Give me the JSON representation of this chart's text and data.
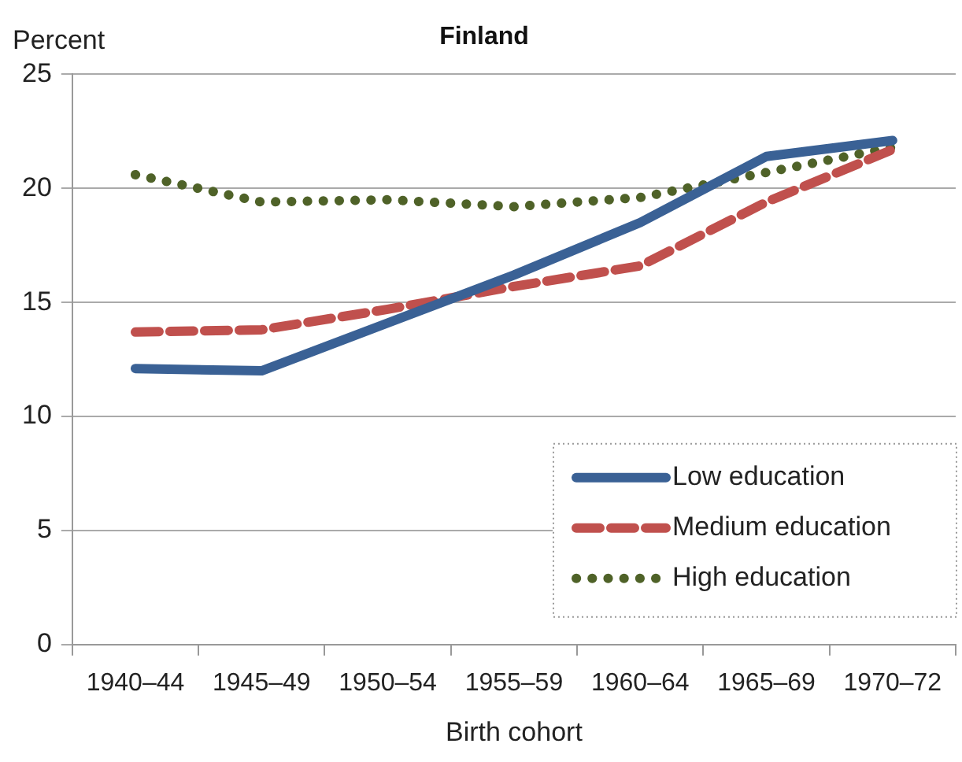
{
  "chart_data": {
    "type": "line",
    "title": "Finland",
    "ylabel": "Percent",
    "xlabel": "Birth cohort",
    "categories": [
      "1940–44",
      "1945–49",
      "1950–54",
      "1955–59",
      "1960–64",
      "1965–69",
      "1970–72"
    ],
    "series": [
      {
        "name": "Low education",
        "color": "#3a6195",
        "line_style": "solid",
        "values": [
          12.1,
          12.0,
          14.1,
          16.2,
          18.5,
          21.4,
          22.1
        ]
      },
      {
        "name": "Medium education",
        "color": "#c0504d",
        "line_style": "dashed",
        "values": [
          13.7,
          13.8,
          14.7,
          15.7,
          16.6,
          19.4,
          21.7
        ]
      },
      {
        "name": "High education",
        "color": "#4f6228",
        "line_style": "dotted",
        "values": [
          20.6,
          19.4,
          19.5,
          19.2,
          19.6,
          20.7,
          21.8
        ]
      }
    ],
    "ylim": [
      0,
      25
    ],
    "yticks": [
      0,
      5,
      10,
      15,
      20,
      25
    ],
    "grid": "y",
    "legend": "bottom right",
    "marker": "none"
  }
}
